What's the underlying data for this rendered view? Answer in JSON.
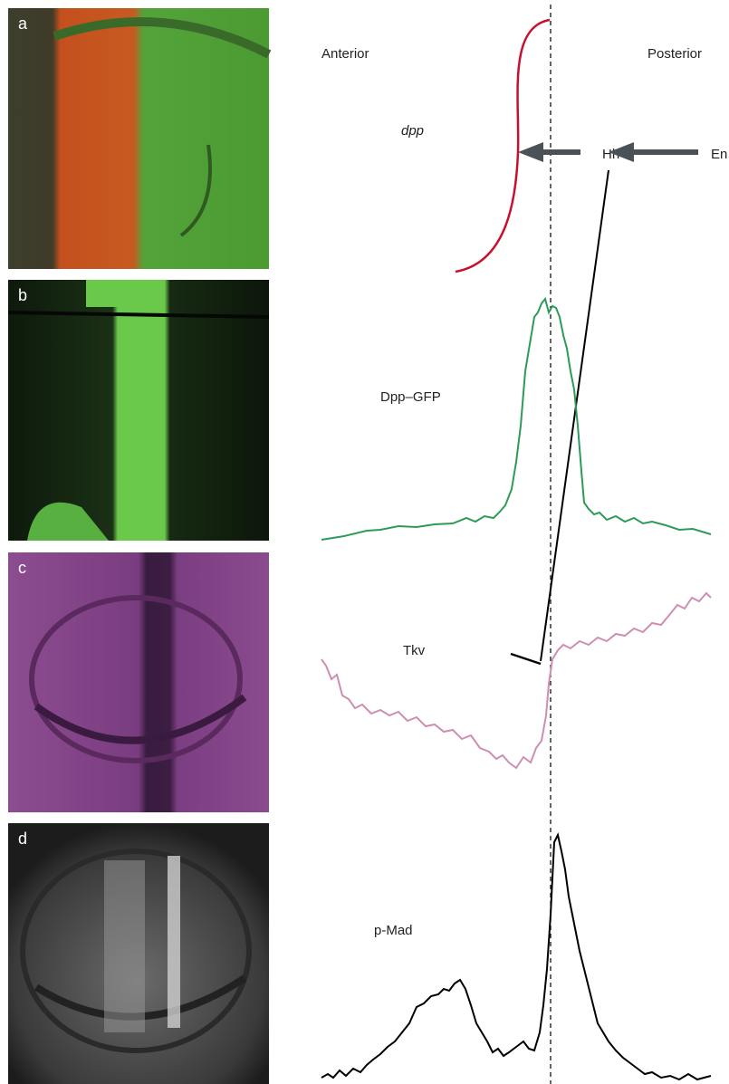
{
  "panel_labels": [
    "a",
    "b",
    "c",
    "d"
  ],
  "axis_labels": {
    "anterior": "Anterior",
    "posterior": "Posterior"
  },
  "pathway": {
    "dpp": "dpp",
    "hh": "Hh",
    "en": "En"
  },
  "profiles": {
    "dpp_gfp": "Dpp–GFP",
    "tkv": "Tkv",
    "p_mad": "p-Mad"
  }
}
